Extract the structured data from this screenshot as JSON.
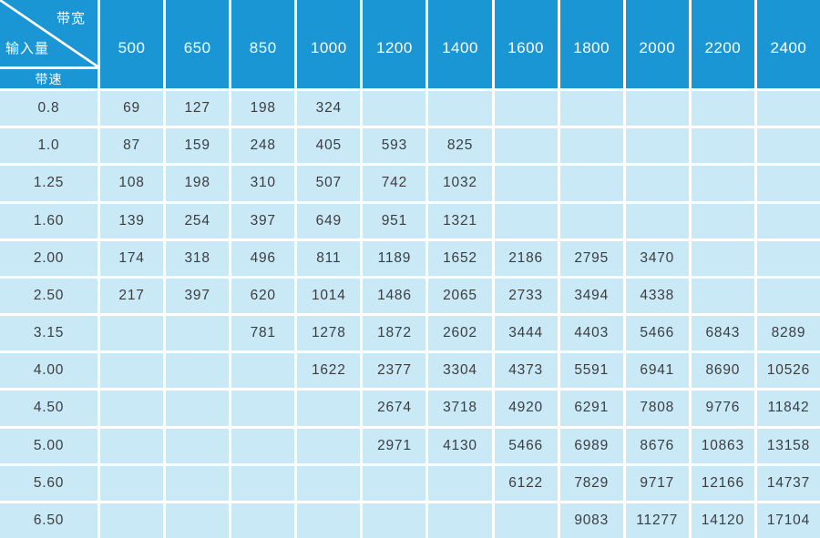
{
  "colors": {
    "header_bg": "#1b96d5",
    "cell_bg": "#c9e9f7",
    "grid_color": "#ffffff",
    "header_text": "#ffffff",
    "cell_text": "#3d3d3d"
  },
  "chart_data": {
    "type": "table",
    "corner_labels": {
      "top_right": "带宽",
      "bottom_left": "输入量",
      "sub_header": "带速"
    },
    "column_headers": [
      "500",
      "650",
      "850",
      "1000",
      "1200",
      "1400",
      "1600",
      "1800",
      "2000",
      "2200",
      "2400"
    ],
    "rows": [
      {
        "label": "0.8",
        "values": [
          "69",
          "127",
          "198",
          "324",
          "",
          "",
          "",
          "",
          "",
          "",
          ""
        ]
      },
      {
        "label": "1.0",
        "values": [
          "87",
          "159",
          "248",
          "405",
          "593",
          "825",
          "",
          "",
          "",
          "",
          ""
        ]
      },
      {
        "label": "1.25",
        "values": [
          "108",
          "198",
          "310",
          "507",
          "742",
          "1032",
          "",
          "",
          "",
          "",
          ""
        ]
      },
      {
        "label": "1.60",
        "values": [
          "139",
          "254",
          "397",
          "649",
          "951",
          "1321",
          "",
          "",
          "",
          "",
          ""
        ]
      },
      {
        "label": "2.00",
        "values": [
          "174",
          "318",
          "496",
          "811",
          "1189",
          "1652",
          "2186",
          "2795",
          "3470",
          "",
          ""
        ]
      },
      {
        "label": "2.50",
        "values": [
          "217",
          "397",
          "620",
          "1014",
          "1486",
          "2065",
          "2733",
          "3494",
          "4338",
          "",
          ""
        ]
      },
      {
        "label": "3.15",
        "values": [
          "",
          "",
          "781",
          "1278",
          "1872",
          "2602",
          "3444",
          "4403",
          "5466",
          "6843",
          "8289"
        ]
      },
      {
        "label": "4.00",
        "values": [
          "",
          "",
          "",
          "1622",
          "2377",
          "3304",
          "4373",
          "5591",
          "6941",
          "8690",
          "10526"
        ]
      },
      {
        "label": "4.50",
        "values": [
          "",
          "",
          "",
          "",
          "2674",
          "3718",
          "4920",
          "6291",
          "7808",
          "9776",
          "11842"
        ]
      },
      {
        "label": "5.00",
        "values": [
          "",
          "",
          "",
          "",
          "2971",
          "4130",
          "5466",
          "6989",
          "8676",
          "10863",
          "13158"
        ]
      },
      {
        "label": "5.60",
        "values": [
          "",
          "",
          "",
          "",
          "",
          "",
          "6122",
          "7829",
          "9717",
          "12166",
          "14737"
        ]
      },
      {
        "label": "6.50",
        "values": [
          "",
          "",
          "",
          "",
          "",
          "",
          "",
          "9083",
          "11277",
          "14120",
          "17104"
        ]
      }
    ]
  }
}
